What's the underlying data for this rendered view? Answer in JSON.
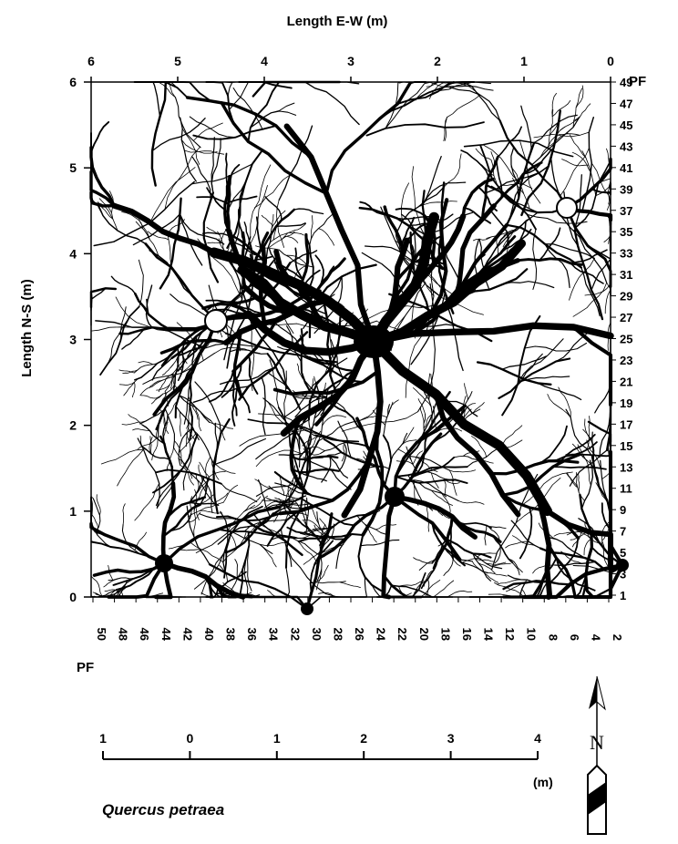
{
  "top_axis": {
    "label": "Length E-W (m)",
    "ticks": [
      "6",
      "5",
      "4",
      "3",
      "2",
      "1",
      "0"
    ]
  },
  "left_axis": {
    "label": "Length N-S (m)",
    "ticks": [
      "6",
      "5",
      "4",
      "3",
      "2",
      "1",
      "0"
    ]
  },
  "right_axis": {
    "corner": "PF",
    "ticks": [
      "49",
      "47",
      "45",
      "43",
      "41",
      "39",
      "37",
      "35",
      "33",
      "31",
      "29",
      "27",
      "25",
      "23",
      "21",
      "19",
      "17",
      "15",
      "13",
      "11",
      "9",
      "7",
      "5",
      "3",
      "1"
    ]
  },
  "bottom_axis": {
    "corner": "PF",
    "ticks": [
      "50",
      "48",
      "46",
      "44",
      "42",
      "40",
      "38",
      "36",
      "34",
      "32",
      "30",
      "28",
      "26",
      "24",
      "22",
      "20",
      "18",
      "16",
      "14",
      "12",
      "10",
      "8",
      "6",
      "4",
      "2"
    ]
  },
  "scale_bar": {
    "ticks": [
      "1",
      "0",
      "1",
      "2",
      "3",
      "4"
    ],
    "unit": "(m)"
  },
  "north": "N",
  "caption": "Quercus petraea"
}
